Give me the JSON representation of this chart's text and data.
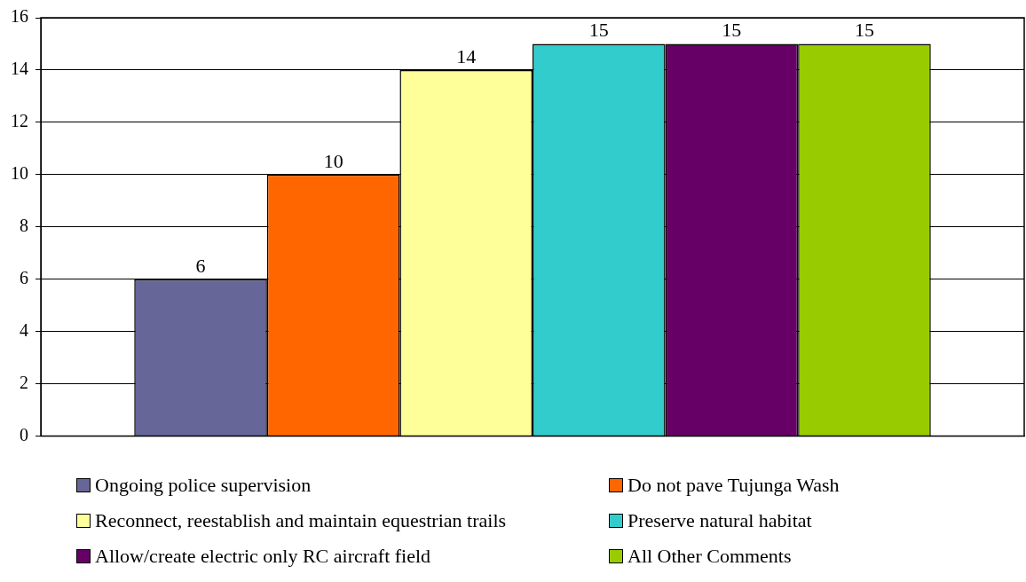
{
  "chart_data": {
    "type": "bar",
    "categories": [
      null
    ],
    "series": [
      {
        "name": "Ongoing police supervision",
        "color": "#666699",
        "values": [
          6
        ]
      },
      {
        "name": "Do not pave Tujunga Wash",
        "color": "#ff6600",
        "values": [
          10
        ]
      },
      {
        "name": "Reconnect, reestablish and maintain equestrian trails",
        "color": "#ffff99",
        "values": [
          14
        ]
      },
      {
        "name": "Preserve natural habitat",
        "color": "#33cccc",
        "values": [
          15
        ]
      },
      {
        "name": "Allow/create electric only RC aircraft field",
        "color": "#660066",
        "values": [
          15
        ]
      },
      {
        "name": "All Other Comments",
        "color": "#99cc00",
        "values": [
          15
        ]
      }
    ],
    "ylim": [
      0,
      16
    ],
    "yticks": [
      0,
      2,
      4,
      6,
      8,
      10,
      12,
      14,
      16
    ],
    "grid": "y",
    "legend": "bottom",
    "data_labels": true
  }
}
